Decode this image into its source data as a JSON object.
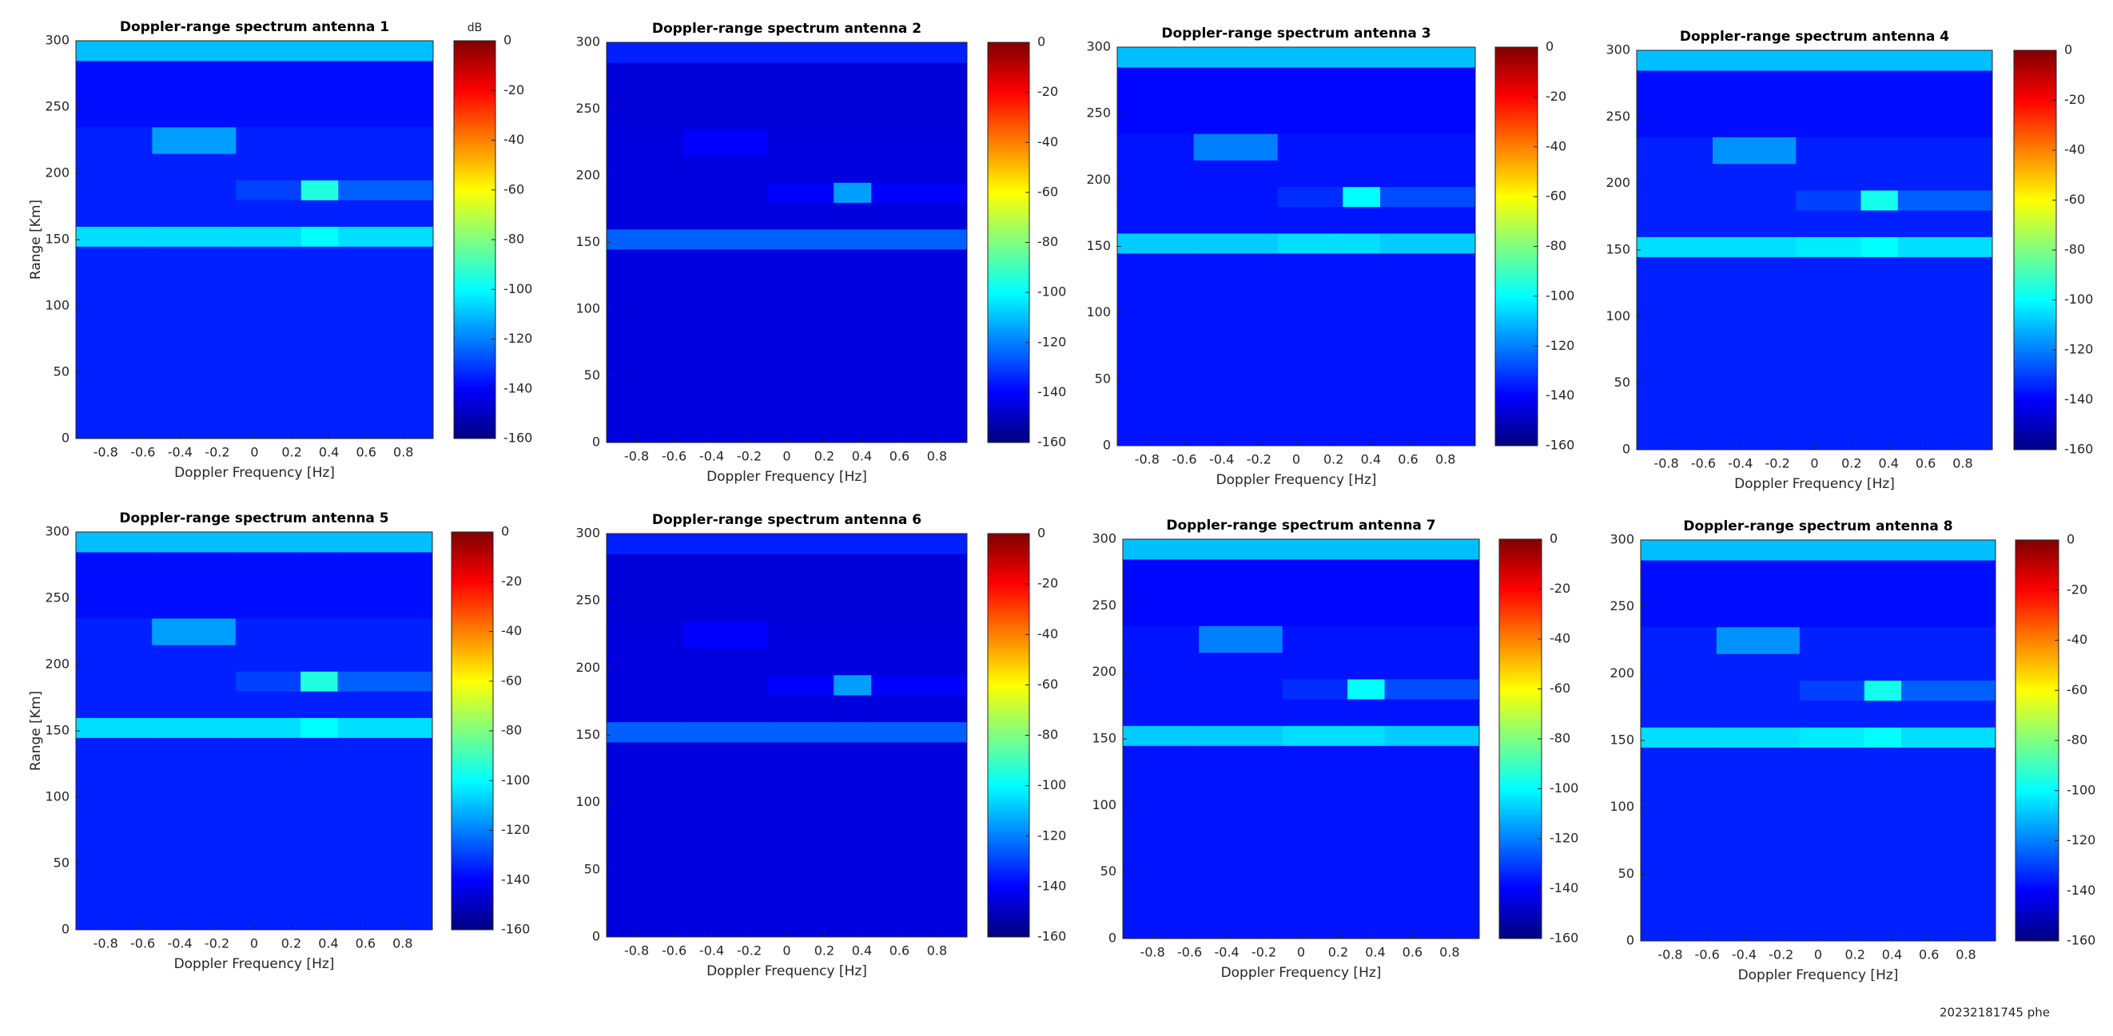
{
  "chart_data": [
    {
      "type": "heatmap",
      "title": "Doppler-range spectrum antenna 1",
      "xlabel": "Doppler Frequency [Hz]",
      "ylabel": "Range [Km]",
      "colorbar_label": "dB",
      "colormap": "jet",
      "xlim": [
        -0.96,
        0.96
      ],
      "ylim": [
        0,
        300
      ],
      "xticks": [
        -0.8,
        -0.6,
        -0.4,
        -0.2,
        0,
        0.2,
        0.4,
        0.6,
        0.8
      ],
      "yticks": [
        0,
        50,
        100,
        150,
        200,
        250,
        300
      ],
      "clim": [
        -160,
        0
      ],
      "cticks": [
        0,
        -20,
        -40,
        -60,
        -80,
        -100,
        -120,
        -140,
        -160
      ],
      "x_bins": [
        -0.96,
        -0.55,
        -0.1,
        0.25,
        0.45,
        0.96
      ],
      "y_bins": [
        0,
        145,
        160,
        180,
        195,
        215,
        235,
        285,
        300
      ],
      "z": [
        [
          -135,
          -135,
          -135,
          -135,
          -135
        ],
        [
          -105,
          -105,
          -105,
          -100,
          -105
        ],
        [
          -135,
          -135,
          -135,
          -135,
          -135
        ],
        [
          -135,
          -135,
          -130,
          -95,
          -125
        ],
        [
          -135,
          -135,
          -135,
          -135,
          -135
        ],
        [
          -135,
          -115,
          -135,
          -135,
          -135
        ],
        [
          -138,
          -138,
          -138,
          -138,
          -138
        ],
        [
          -110,
          -110,
          -110,
          -110,
          -110
        ]
      ]
    },
    {
      "type": "heatmap",
      "title": "Doppler-range spectrum antenna 2",
      "xlabel": "Doppler Frequency [Hz]",
      "colormap": "jet",
      "xlim": [
        -0.96,
        0.96
      ],
      "ylim": [
        0,
        300
      ],
      "xticks": [
        -0.8,
        -0.6,
        -0.4,
        -0.2,
        0,
        0.2,
        0.4,
        0.6,
        0.8
      ],
      "yticks": [
        0,
        50,
        100,
        150,
        200,
        250,
        300
      ],
      "clim": [
        -160,
        0
      ],
      "cticks": [
        0,
        -20,
        -40,
        -60,
        -80,
        -100,
        -120,
        -140,
        -160
      ],
      "x_bins": [
        -0.96,
        -0.55,
        -0.1,
        0.25,
        0.45,
        0.96
      ],
      "y_bins": [
        0,
        145,
        160,
        180,
        195,
        215,
        235,
        285,
        300
      ],
      "z": [
        [
          -145,
          -145,
          -145,
          -145,
          -145
        ],
        [
          -125,
          -125,
          -125,
          -125,
          -125
        ],
        [
          -145,
          -145,
          -145,
          -145,
          -145
        ],
        [
          -145,
          -145,
          -140,
          -115,
          -140
        ],
        [
          -145,
          -145,
          -145,
          -145,
          -145
        ],
        [
          -145,
          -140,
          -145,
          -145,
          -145
        ],
        [
          -146,
          -146,
          -146,
          -146,
          -146
        ],
        [
          -135,
          -135,
          -135,
          -135,
          -135
        ]
      ]
    },
    {
      "type": "heatmap",
      "title": "Doppler-range spectrum antenna 3",
      "xlabel": "Doppler Frequency [Hz]",
      "colormap": "jet",
      "xlim": [
        -0.96,
        0.96
      ],
      "ylim": [
        0,
        300
      ],
      "xticks": [
        -0.8,
        -0.6,
        -0.4,
        -0.2,
        0,
        0.2,
        0.4,
        0.6,
        0.8
      ],
      "yticks": [
        0,
        50,
        100,
        150,
        200,
        250,
        300
      ],
      "clim": [
        -160,
        0
      ],
      "cticks": [
        0,
        -20,
        -40,
        -60,
        -80,
        -100,
        -120,
        -140,
        -160
      ],
      "x_bins": [
        -0.96,
        -0.55,
        -0.1,
        0.25,
        0.45,
        0.96
      ],
      "y_bins": [
        0,
        145,
        160,
        180,
        195,
        215,
        235,
        285,
        300
      ],
      "z": [
        [
          -137,
          -137,
          -137,
          -137,
          -137
        ],
        [
          -108,
          -108,
          -105,
          -105,
          -108
        ],
        [
          -137,
          -137,
          -137,
          -137,
          -137
        ],
        [
          -137,
          -137,
          -133,
          -100,
          -128
        ],
        [
          -137,
          -137,
          -137,
          -137,
          -137
        ],
        [
          -137,
          -120,
          -137,
          -137,
          -137
        ],
        [
          -139,
          -139,
          -139,
          -139,
          -139
        ],
        [
          -110,
          -110,
          -110,
          -110,
          -110
        ]
      ]
    },
    {
      "type": "heatmap",
      "title": "Doppler-range spectrum antenna 4",
      "xlabel": "Doppler Frequency [Hz]",
      "colormap": "jet",
      "xlim": [
        -0.96,
        0.96
      ],
      "ylim": [
        0,
        300
      ],
      "xticks": [
        -0.8,
        -0.6,
        -0.4,
        -0.2,
        0,
        0.2,
        0.4,
        0.6,
        0.8
      ],
      "yticks": [
        0,
        50,
        100,
        150,
        200,
        250,
        300
      ],
      "clim": [
        -160,
        0
      ],
      "cticks": [
        0,
        -20,
        -40,
        -60,
        -80,
        -100,
        -120,
        -140,
        -160
      ],
      "x_bins": [
        -0.96,
        -0.55,
        -0.1,
        0.25,
        0.45,
        0.96
      ],
      "y_bins": [
        0,
        145,
        160,
        180,
        195,
        215,
        235,
        285,
        300
      ],
      "z": [
        [
          -135,
          -135,
          -135,
          -135,
          -135
        ],
        [
          -105,
          -105,
          -103,
          -100,
          -105
        ],
        [
          -135,
          -135,
          -135,
          -135,
          -135
        ],
        [
          -135,
          -135,
          -130,
          -97,
          -125
        ],
        [
          -135,
          -135,
          -135,
          -135,
          -135
        ],
        [
          -135,
          -117,
          -135,
          -135,
          -135
        ],
        [
          -138,
          -138,
          -138,
          -138,
          -138
        ],
        [
          -110,
          -110,
          -110,
          -110,
          -110
        ]
      ]
    },
    {
      "type": "heatmap",
      "title": "Doppler-range spectrum antenna 5",
      "xlabel": "Doppler Frequency [Hz]",
      "ylabel": "Range [Km]",
      "colormap": "jet",
      "xlim": [
        -0.96,
        0.96
      ],
      "ylim": [
        0,
        300
      ],
      "xticks": [
        -0.8,
        -0.6,
        -0.4,
        -0.2,
        0,
        0.2,
        0.4,
        0.6,
        0.8
      ],
      "yticks": [
        0,
        50,
        100,
        150,
        200,
        250,
        300
      ],
      "clim": [
        -160,
        0
      ],
      "cticks": [
        0,
        -20,
        -40,
        -60,
        -80,
        -100,
        -120,
        -140,
        -160
      ],
      "x_bins": [
        -0.96,
        -0.55,
        -0.1,
        0.25,
        0.45,
        0.96
      ],
      "y_bins": [
        0,
        145,
        160,
        180,
        195,
        215,
        235,
        285,
        300
      ],
      "z": [
        [
          -135,
          -135,
          -135,
          -135,
          -135
        ],
        [
          -105,
          -105,
          -105,
          -100,
          -105
        ],
        [
          -135,
          -135,
          -135,
          -135,
          -135
        ],
        [
          -135,
          -135,
          -130,
          -95,
          -125
        ],
        [
          -135,
          -135,
          -135,
          -135,
          -135
        ],
        [
          -135,
          -115,
          -135,
          -135,
          -135
        ],
        [
          -138,
          -138,
          -138,
          -138,
          -138
        ],
        [
          -110,
          -110,
          -110,
          -110,
          -110
        ]
      ]
    },
    {
      "type": "heatmap",
      "title": "Doppler-range spectrum antenna 6",
      "xlabel": "Doppler Frequency [Hz]",
      "colormap": "jet",
      "xlim": [
        -0.96,
        0.96
      ],
      "ylim": [
        0,
        300
      ],
      "xticks": [
        -0.8,
        -0.6,
        -0.4,
        -0.2,
        0,
        0.2,
        0.4,
        0.6,
        0.8
      ],
      "yticks": [
        0,
        50,
        100,
        150,
        200,
        250,
        300
      ],
      "clim": [
        -160,
        0
      ],
      "cticks": [
        0,
        -20,
        -40,
        -60,
        -80,
        -100,
        -120,
        -140,
        -160
      ],
      "x_bins": [
        -0.96,
        -0.55,
        -0.1,
        0.25,
        0.45,
        0.96
      ],
      "y_bins": [
        0,
        145,
        160,
        180,
        195,
        215,
        235,
        285,
        300
      ],
      "z": [
        [
          -145,
          -145,
          -145,
          -145,
          -145
        ],
        [
          -125,
          -125,
          -125,
          -125,
          -125
        ],
        [
          -145,
          -145,
          -145,
          -145,
          -145
        ],
        [
          -145,
          -145,
          -140,
          -115,
          -140
        ],
        [
          -145,
          -145,
          -145,
          -145,
          -145
        ],
        [
          -145,
          -140,
          -145,
          -145,
          -145
        ],
        [
          -146,
          -146,
          -146,
          -146,
          -146
        ],
        [
          -135,
          -135,
          -135,
          -135,
          -135
        ]
      ]
    },
    {
      "type": "heatmap",
      "title": "Doppler-range spectrum antenna 7",
      "xlabel": "Doppler Frequency [Hz]",
      "colormap": "jet",
      "xlim": [
        -0.96,
        0.96
      ],
      "ylim": [
        0,
        300
      ],
      "xticks": [
        -0.8,
        -0.6,
        -0.4,
        -0.2,
        0,
        0.2,
        0.4,
        0.6,
        0.8
      ],
      "yticks": [
        0,
        50,
        100,
        150,
        200,
        250,
        300
      ],
      "clim": [
        -160,
        0
      ],
      "cticks": [
        0,
        -20,
        -40,
        -60,
        -80,
        -100,
        -120,
        -140,
        -160
      ],
      "x_bins": [
        -0.96,
        -0.55,
        -0.1,
        0.25,
        0.45,
        0.96
      ],
      "y_bins": [
        0,
        145,
        160,
        180,
        195,
        215,
        235,
        285,
        300
      ],
      "z": [
        [
          -137,
          -137,
          -137,
          -137,
          -137
        ],
        [
          -108,
          -108,
          -105,
          -105,
          -108
        ],
        [
          -137,
          -137,
          -137,
          -137,
          -137
        ],
        [
          -137,
          -137,
          -133,
          -100,
          -128
        ],
        [
          -137,
          -137,
          -137,
          -137,
          -137
        ],
        [
          -137,
          -120,
          -137,
          -137,
          -137
        ],
        [
          -139,
          -139,
          -139,
          -139,
          -139
        ],
        [
          -110,
          -110,
          -110,
          -110,
          -110
        ]
      ]
    },
    {
      "type": "heatmap",
      "title": "Doppler-range spectrum antenna 8",
      "xlabel": "Doppler Frequency [Hz]",
      "colormap": "jet",
      "xlim": [
        -0.96,
        0.96
      ],
      "ylim": [
        0,
        300
      ],
      "xticks": [
        -0.8,
        -0.6,
        -0.4,
        -0.2,
        0,
        0.2,
        0.4,
        0.6,
        0.8
      ],
      "yticks": [
        0,
        50,
        100,
        150,
        200,
        250,
        300
      ],
      "clim": [
        -160,
        0
      ],
      "cticks": [
        0,
        -20,
        -40,
        -60,
        -80,
        -100,
        -120,
        -140,
        -160
      ],
      "x_bins": [
        -0.96,
        -0.55,
        -0.1,
        0.25,
        0.45,
        0.96
      ],
      "y_bins": [
        0,
        145,
        160,
        180,
        195,
        215,
        235,
        285,
        300
      ],
      "z": [
        [
          -135,
          -135,
          -135,
          -135,
          -135
        ],
        [
          -105,
          -105,
          -103,
          -100,
          -105
        ],
        [
          -135,
          -135,
          -135,
          -135,
          -135
        ],
        [
          -135,
          -135,
          -130,
          -97,
          -125
        ],
        [
          -135,
          -135,
          -135,
          -135,
          -135
        ],
        [
          -135,
          -117,
          -135,
          -135,
          -135
        ],
        [
          -138,
          -138,
          -138,
          -138,
          -138
        ],
        [
          -110,
          -110,
          -110,
          -110,
          -110
        ]
      ]
    }
  ],
  "footer": "20232181745 phe"
}
